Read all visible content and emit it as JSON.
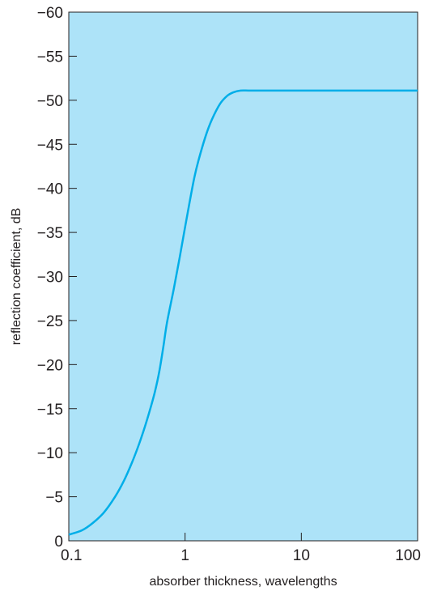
{
  "chart_data": {
    "type": "line",
    "xlabel": "absorber thickness, wavelengths",
    "ylabel": "reflection coefficient, dB",
    "x_scale": "log",
    "xlim": [
      0.1,
      100
    ],
    "ylim": [
      0,
      -60
    ],
    "x_ticks": [
      {
        "value": 0.1,
        "label": "0.1"
      },
      {
        "value": 1,
        "label": "1"
      },
      {
        "value": 10,
        "label": "10"
      },
      {
        "value": 100,
        "label": "100"
      }
    ],
    "y_ticks": [
      {
        "value": 0,
        "label": "0"
      },
      {
        "value": -5,
        "label": "−5"
      },
      {
        "value": -10,
        "label": "−10"
      },
      {
        "value": -15,
        "label": "−15"
      },
      {
        "value": -20,
        "label": "−20"
      },
      {
        "value": -25,
        "label": "−25"
      },
      {
        "value": -30,
        "label": "−30"
      },
      {
        "value": -35,
        "label": "−35"
      },
      {
        "value": -40,
        "label": "−40"
      },
      {
        "value": -45,
        "label": "−45"
      },
      {
        "value": -50,
        "label": "−50"
      },
      {
        "value": -55,
        "label": "−55"
      },
      {
        "value": -60,
        "label": "−60"
      }
    ],
    "grid": false,
    "legend": "none",
    "series": [
      {
        "x": [
          0.1,
          0.13,
          0.16,
          0.2,
          0.25,
          0.3,
          0.35,
          0.4,
          0.45,
          0.5,
          0.55,
          0.6,
          0.65,
          0.7,
          0.8,
          0.9,
          1.0,
          1.1,
          1.2,
          1.3,
          1.5,
          1.7,
          2.0,
          2.3,
          2.6,
          3.0,
          3.5,
          4.0,
          5.0,
          7.0,
          10,
          20,
          50,
          100
        ],
        "values": [
          -0.7,
          -1.2,
          -2.0,
          -3.2,
          -5.0,
          -6.9,
          -8.9,
          -10.9,
          -12.9,
          -14.9,
          -16.9,
          -19.2,
          -22.0,
          -24.8,
          -28.6,
          -32.2,
          -35.6,
          -38.6,
          -41.2,
          -43.1,
          -45.9,
          -47.8,
          -49.6,
          -50.5,
          -50.9,
          -51.1,
          -51.1,
          -51.1,
          -51.1,
          -51.1,
          -51.1,
          -51.1,
          -51.1,
          -51.1
        ]
      }
    ],
    "colors": {
      "plot_background": "#ade3f8",
      "line": "#00aee8",
      "axis": "#231f20"
    }
  }
}
